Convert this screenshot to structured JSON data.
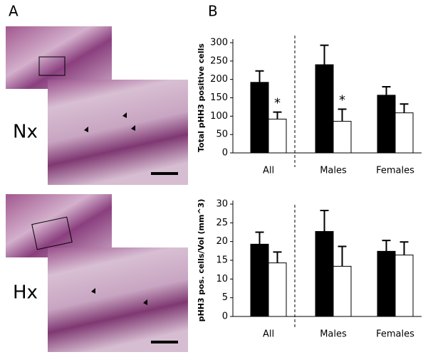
{
  "panels": {
    "a": "A",
    "b": "B",
    "nx": "Nx",
    "hx": "Hx"
  },
  "chart_data": [
    {
      "type": "bar",
      "ylabel": "Total pHH3 positive cells",
      "categories": [
        "All",
        "Males",
        "Females"
      ],
      "series": [
        {
          "color": "#000000",
          "values": [
            192,
            240,
            157
          ],
          "errors": [
            31,
            53,
            23
          ]
        },
        {
          "color": "#ffffff",
          "values": [
            92,
            86,
            109
          ],
          "errors": [
            19,
            33,
            24
          ],
          "markers": [
            "*",
            "*",
            null
          ]
        }
      ],
      "ylim": [
        0,
        300
      ],
      "yticks": [
        0,
        50,
        100,
        150,
        200,
        250,
        300
      ],
      "grid": false
    },
    {
      "type": "bar",
      "ylabel": "pHH3 pos. cells/Vol (mm^3)",
      "categories": [
        "All",
        "Males",
        "Females"
      ],
      "series": [
        {
          "color": "#000000",
          "values": [
            19.3,
            22.7,
            17.4
          ],
          "errors": [
            3.2,
            5.6,
            2.9
          ]
        },
        {
          "color": "#ffffff",
          "values": [
            14.3,
            13.4,
            16.4
          ],
          "errors": [
            2.9,
            5.3,
            3.5
          ]
        }
      ],
      "ylim": [
        0,
        30
      ],
      "yticks": [
        0,
        5,
        10,
        15,
        20,
        25,
        30
      ],
      "grid": false
    }
  ]
}
